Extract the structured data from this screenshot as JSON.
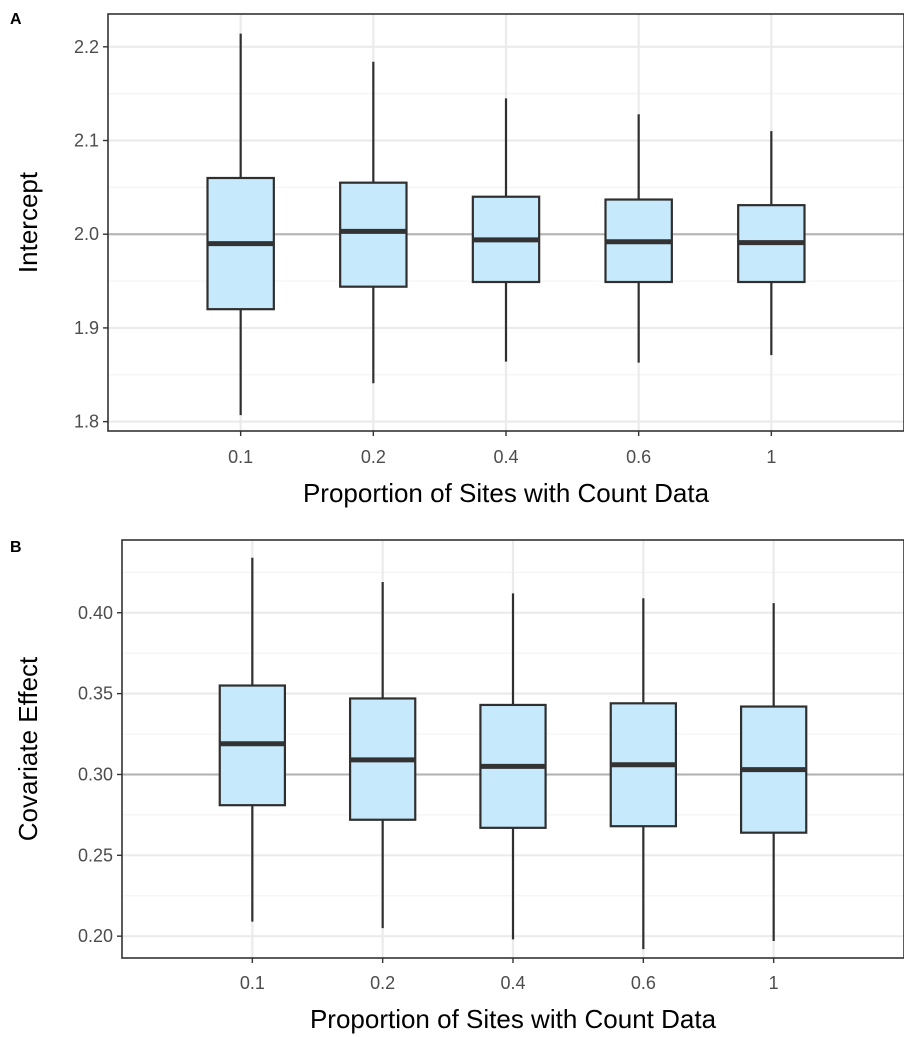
{
  "colors": {
    "box_fill": "#c6e9fb",
    "box_stroke": "#2f2f2f",
    "median": "#333333",
    "reference_line": "#b3b3b3",
    "grid_major": "#ebebeb",
    "grid_minor": "#f4f4f4",
    "panel_border": "#333333",
    "tick_text": "#4d4d4d"
  },
  "chart_data": [
    {
      "type": "boxplot",
      "panel_tag": "A",
      "xlabel": "Proportion of Sites with Count Data",
      "ylabel": "Intercept",
      "categories": [
        "0.1",
        "0.2",
        "0.4",
        "0.6",
        "1"
      ],
      "ylim": [
        1.79,
        2.235
      ],
      "yticks": [
        1.8,
        1.9,
        2.0,
        2.1,
        2.2
      ],
      "ytick_labels": [
        "1.8",
        "1.9",
        "2.0",
        "2.1",
        "2.2"
      ],
      "reference_value": 2.0,
      "grid": true,
      "boxes": [
        {
          "whisker_low": 1.807,
          "q1": 1.92,
          "median": 1.99,
          "q3": 2.06,
          "whisker_high": 2.214
        },
        {
          "whisker_low": 1.841,
          "q1": 1.944,
          "median": 2.003,
          "q3": 2.055,
          "whisker_high": 2.184
        },
        {
          "whisker_low": 1.864,
          "q1": 1.949,
          "median": 1.994,
          "q3": 2.04,
          "whisker_high": 2.145
        },
        {
          "whisker_low": 1.863,
          "q1": 1.949,
          "median": 1.992,
          "q3": 2.037,
          "whisker_high": 2.128
        },
        {
          "whisker_low": 1.871,
          "q1": 1.949,
          "median": 1.991,
          "q3": 2.031,
          "whisker_high": 2.11
        }
      ]
    },
    {
      "type": "boxplot",
      "panel_tag": "B",
      "xlabel": "Proportion of Sites with Count Data",
      "ylabel": "Covariate Effect",
      "categories": [
        "0.1",
        "0.2",
        "0.4",
        "0.6",
        "1"
      ],
      "ylim": [
        0.1865,
        0.445
      ],
      "yticks": [
        0.2,
        0.25,
        0.3,
        0.35,
        0.4
      ],
      "ytick_labels": [
        "0.20",
        "0.25",
        "0.30",
        "0.35",
        "0.40"
      ],
      "reference_value": 0.3,
      "grid": true,
      "boxes": [
        {
          "whisker_low": 0.209,
          "q1": 0.281,
          "median": 0.319,
          "q3": 0.355,
          "whisker_high": 0.434
        },
        {
          "whisker_low": 0.205,
          "q1": 0.272,
          "median": 0.309,
          "q3": 0.347,
          "whisker_high": 0.419
        },
        {
          "whisker_low": 0.198,
          "q1": 0.267,
          "median": 0.305,
          "q3": 0.343,
          "whisker_high": 0.412
        },
        {
          "whisker_low": 0.192,
          "q1": 0.268,
          "median": 0.306,
          "q3": 0.344,
          "whisker_high": 0.409
        },
        {
          "whisker_low": 0.197,
          "q1": 0.264,
          "median": 0.303,
          "q3": 0.342,
          "whisker_high": 0.406
        }
      ]
    }
  ]
}
